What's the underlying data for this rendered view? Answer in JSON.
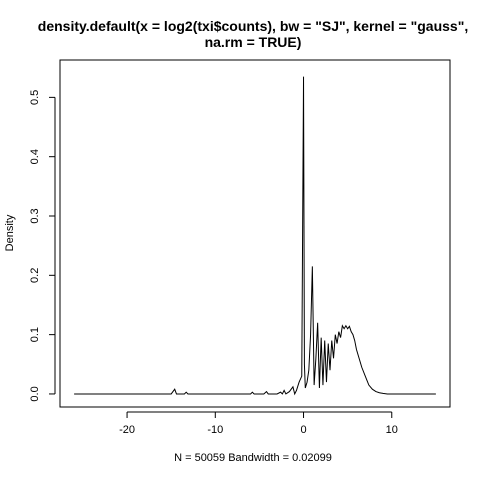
{
  "chart_data": {
    "type": "line",
    "title_line1": "density.default(x = log2(txi$counts), bw = \"SJ\", kernel = \"gauss\",",
    "title_line2": "na.rm = TRUE)",
    "xlabel": "N = 50059   Bandwidth = 0.02099",
    "ylabel": "Density",
    "xlim": [
      -27.6,
      16.6
    ],
    "ylim": [
      -0.022,
      0.563
    ],
    "x_ticks": [
      -20,
      -10,
      0,
      10
    ],
    "x_tick_labels": [
      "-20",
      "-10",
      "0",
      "10"
    ],
    "y_ticks": [
      0.0,
      0.1,
      0.2,
      0.3,
      0.4,
      0.5
    ],
    "y_tick_labels": [
      "0.0",
      "0.1",
      "0.2",
      "0.3",
      "0.4",
      "0.5"
    ],
    "grid": false,
    "series": [
      {
        "color": "#000000",
        "x": [
          -26.0,
          -15.0,
          -14.6,
          -14.4,
          -14.2,
          -14.0,
          -13.5,
          -13.3,
          -13.1,
          -12.0,
          -7.0,
          -6.0,
          -5.8,
          -5.6,
          -5.0,
          -4.5,
          -4.2,
          -4.0,
          -3.0,
          -2.6,
          -2.4,
          -2.2,
          -2.0,
          -1.6,
          -1.2,
          -1.0,
          -0.8,
          -0.5,
          -0.2,
          0.0,
          0.1,
          0.2,
          0.4,
          0.6,
          0.8,
          1.0,
          1.2,
          1.4,
          1.6,
          1.8,
          2.0,
          2.2,
          2.4,
          2.6,
          2.8,
          3.0,
          3.2,
          3.4,
          3.6,
          3.8,
          4.0,
          4.2,
          4.4,
          4.6,
          4.8,
          5.0,
          5.2,
          5.4,
          5.6,
          5.8,
          6.0,
          6.3,
          6.6,
          7.0,
          7.4,
          7.8,
          8.2,
          8.6,
          9.0,
          9.5,
          10.0,
          10.5,
          11.0,
          12.0,
          13.0,
          14.0,
          15.0
        ],
        "y": [
          0.0,
          0.0,
          0.008,
          0.0,
          0.0,
          0.0,
          0.0,
          0.003,
          0.0,
          0.0,
          0.0,
          0.0,
          0.003,
          0.0,
          0.0,
          0.0,
          0.004,
          0.0,
          0.0,
          0.003,
          0.0,
          0.006,
          0.0,
          0.004,
          0.012,
          0.0,
          0.006,
          0.02,
          0.03,
          0.535,
          0.05,
          0.01,
          0.02,
          0.04,
          0.1,
          0.215,
          0.015,
          0.06,
          0.12,
          0.01,
          0.095,
          0.015,
          0.09,
          0.02,
          0.085,
          0.04,
          0.09,
          0.06,
          0.1,
          0.085,
          0.105,
          0.095,
          0.115,
          0.11,
          0.115,
          0.11,
          0.114,
          0.105,
          0.1,
          0.09,
          0.075,
          0.06,
          0.045,
          0.03,
          0.015,
          0.008,
          0.004,
          0.002,
          0.001,
          0.0,
          0.0,
          0.0,
          0.0,
          0.0,
          0.0,
          0.0,
          0.0
        ]
      }
    ],
    "footer": ""
  }
}
